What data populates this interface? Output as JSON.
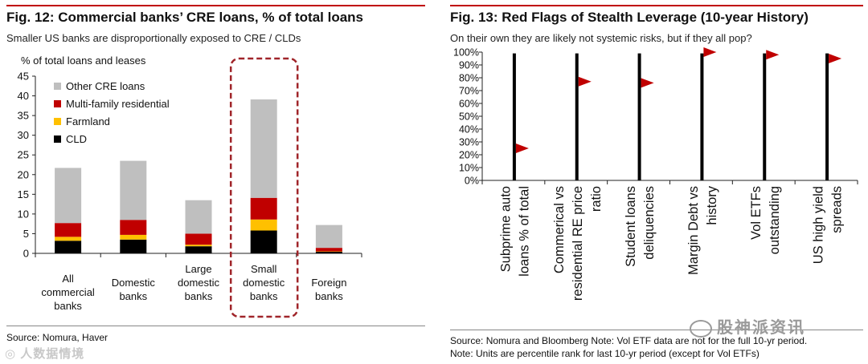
{
  "left": {
    "title": "Fig. 12: Commercial banks’ CRE loans, % of total loans",
    "subtitle": "Smaller US banks are disproportionally exposed to CRE / CLDs",
    "source": "Source: Nomura, Haver"
  },
  "right": {
    "title": "Fig. 13: Red Flags of Stealth Leverage (10-year History)",
    "subtitle": "On their own they are likely not systemic risks, but if they all pop?",
    "source_line1": "Source: Nomura and Bloomberg Note: Vol ETF data are not for the full 10-yr period.",
    "source_line2": "Note: Units are percentile rank for last 10-yr period (except for Vol ETFs)"
  },
  "watermarks": {
    "left": "◎ 人数据情境",
    "right": "股神派资讯"
  },
  "colors": {
    "rule": "#c00000",
    "other_cre": "#bfbfbf",
    "multifamily": "#c00000",
    "farmland": "#ffc000",
    "cld": "#000000",
    "flag": "#c00000",
    "highlight_box": "#a0252a"
  },
  "chart_data": [
    {
      "type": "bar",
      "stacked": true,
      "title": "Fig. 12: Commercial banks’ CRE loans, % of total loans",
      "ylabel": "% of total loans and leases",
      "xlabel": "",
      "ylim": [
        0,
        45
      ],
      "yticks": [
        0,
        5,
        10,
        15,
        20,
        25,
        30,
        35,
        40,
        45
      ],
      "categories": [
        [
          "All",
          "commercial",
          "banks"
        ],
        [
          "Domestic",
          "banks"
        ],
        [
          "Large",
          "domestic",
          "banks"
        ],
        [
          "Small",
          "domestic",
          "banks"
        ],
        [
          "Foreign",
          "banks"
        ]
      ],
      "series": [
        {
          "name": "CLD",
          "color": "#000000",
          "values": [
            3.2,
            3.5,
            1.8,
            5.8,
            0.4
          ]
        },
        {
          "name": "Farmland",
          "color": "#ffc000",
          "values": [
            1.0,
            1.2,
            0.4,
            2.8,
            0.1
          ]
        },
        {
          "name": "Multi-family residential",
          "color": "#c00000",
          "values": [
            3.5,
            3.8,
            2.8,
            5.5,
            0.9
          ]
        },
        {
          "name": "Other CRE loans",
          "color": "#bfbfbf",
          "values": [
            14.0,
            15.0,
            8.5,
            25.0,
            5.8
          ]
        }
      ],
      "legend_order": [
        "Other CRE loans",
        "Multi-family residential",
        "Farmland",
        "CLD"
      ],
      "legend_position": "top-left",
      "highlight_category": 3
    },
    {
      "type": "scatter",
      "title": "Fig. 13: Red Flags of Stealth Leverage (10-year History)",
      "ylabel": "",
      "xlabel": "",
      "ylim": [
        0,
        100
      ],
      "yticks": [
        "0%",
        "10%",
        "20%",
        "30%",
        "40%",
        "50%",
        "60%",
        "70%",
        "80%",
        "90%",
        "100%"
      ],
      "categories": [
        [
          "Subprime auto",
          "loans % of total"
        ],
        [
          "Commerical vs",
          "residential RE price",
          "ratio"
        ],
        [
          "Student loans",
          "deliquencies"
        ],
        [
          "Margin Debt vs",
          "history"
        ],
        [
          "Vol ETFs",
          "outstanding"
        ],
        [
          "US high yield",
          "spreads"
        ]
      ],
      "values": [
        25,
        77,
        76,
        100,
        98,
        95
      ],
      "pole_top": [
        99,
        99,
        99,
        99,
        99,
        99
      ]
    }
  ]
}
